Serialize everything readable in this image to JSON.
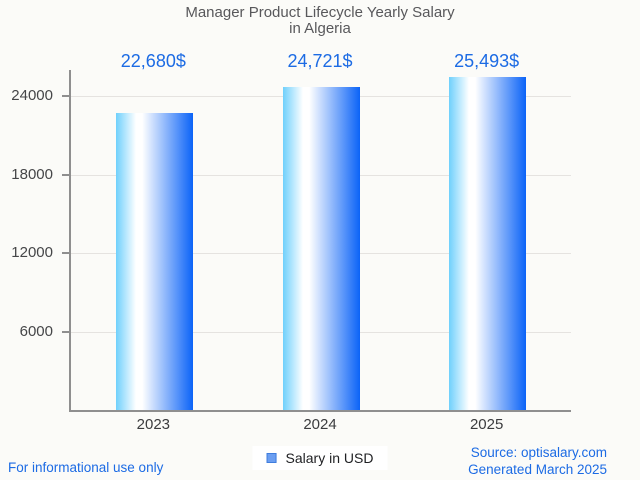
{
  "title": {
    "line1": "Manager Product Lifecycle Yearly Salary",
    "line2": "in Algeria"
  },
  "chart_data": {
    "type": "bar",
    "title": "Manager Product Lifecycle Yearly Salary in Algeria",
    "categories": [
      "2023",
      "2024",
      "2025"
    ],
    "values": [
      22680,
      24721,
      25493
    ],
    "value_labels": [
      "22,680$",
      "24,721$",
      "25,493$"
    ],
    "series_name": "Salary in USD",
    "xlabel": "",
    "ylabel": "",
    "ylim": [
      0,
      26000
    ],
    "yticks": [
      6000,
      12000,
      18000,
      24000
    ],
    "grid": true,
    "legend_position": "bottom"
  },
  "legend": {
    "label": "Salary in USD"
  },
  "footer": {
    "left": "For informational use only",
    "source": "Source: optisalary.com",
    "generated": "Generated March 2025"
  },
  "colors": {
    "background": "#fbfbf8",
    "accent_blue": "#1c6be4",
    "title_text": "#58585b",
    "tick_text": "#454648",
    "axis_line": "#8f8f8f",
    "gridline": "#e5e3e0",
    "bar_gradient_left": "#6fd0fc",
    "bar_gradient_mid": "#ffffff",
    "bar_gradient_right": "#0b63f7",
    "legend_swatch_fill": "#6b9ef1",
    "legend_swatch_border": "#3f7ddd"
  }
}
